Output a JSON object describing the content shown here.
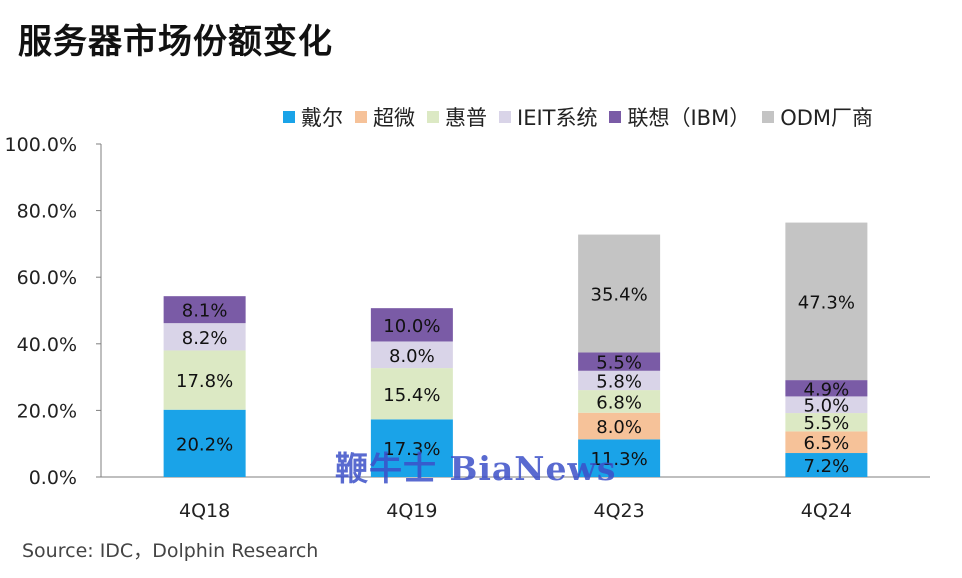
{
  "title": "服务器市场份额变化",
  "source": "Source: IDC，Dolphin Research",
  "watermark_text": "鞭牛士 BiaNews",
  "chart_data": {
    "type": "bar",
    "stacked": true,
    "title": "服务器市场份额变化",
    "xlabel": "",
    "ylabel": "",
    "ylim": [
      0,
      100
    ],
    "y_ticks": [
      "0.0%",
      "20.0%",
      "40.0%",
      "60.0%",
      "80.0%",
      "100.0%"
    ],
    "grid": false,
    "legend_position": "top",
    "categories": [
      "4Q18",
      "4Q19",
      "4Q23",
      "4Q24"
    ],
    "series": [
      {
        "name": "戴尔",
        "color": "#1aa3e8",
        "values": [
          20.2,
          17.3,
          11.3,
          7.2
        ],
        "labels": [
          "20.2%",
          "17.3%",
          "11.3%",
          "7.2%"
        ]
      },
      {
        "name": "超微",
        "color": "#f6c299",
        "values": [
          0,
          0,
          8.0,
          6.5
        ],
        "labels": [
          "",
          "",
          "8.0%",
          "6.5%"
        ]
      },
      {
        "name": "惠普",
        "color": "#dce9c4",
        "values": [
          17.8,
          15.4,
          6.8,
          5.5
        ],
        "labels": [
          "17.8%",
          "15.4%",
          "6.8%",
          "5.5%"
        ]
      },
      {
        "name": "IEIT系统",
        "color": "#d9d4e8",
        "values": [
          8.2,
          8.0,
          5.8,
          5.0
        ],
        "labels": [
          "8.2%",
          "8.0%",
          "5.8%",
          "5.0%"
        ]
      },
      {
        "name": "联想（IBM）",
        "color": "#7a5ba6",
        "values": [
          8.1,
          10.0,
          5.5,
          4.9
        ],
        "labels": [
          "8.1%",
          "10.0%",
          "5.5%",
          "4.9%"
        ]
      },
      {
        "name": "ODM厂商",
        "color": "#c4c4c4",
        "values": [
          0,
          0,
          35.4,
          47.3
        ],
        "labels": [
          "",
          "",
          "35.4%",
          "47.3%"
        ]
      }
    ]
  }
}
